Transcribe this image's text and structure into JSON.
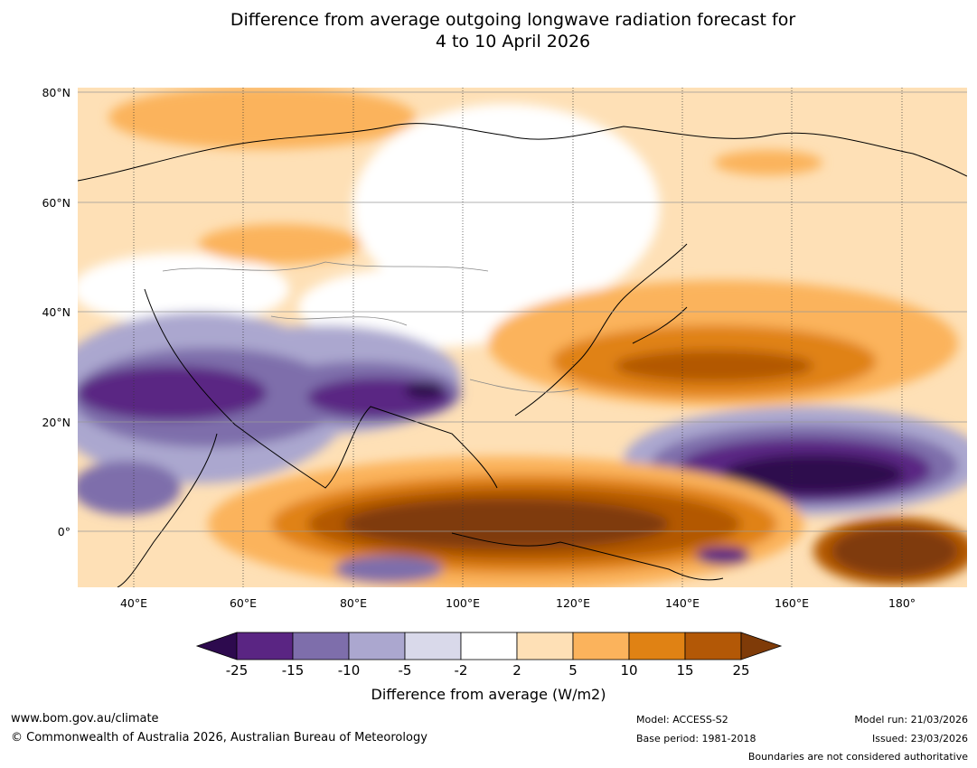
{
  "title_line1": "Difference from average outgoing longwave radiation forecast for",
  "title_line2": "4 to 10 April 2026",
  "map": {
    "lat_labels": [
      "80°N",
      "60°N",
      "40°N",
      "20°N",
      "0°"
    ],
    "lon_labels": [
      "40°E",
      "60°E",
      "80°E",
      "100°E",
      "120°E",
      "140°E",
      "160°E",
      "180°"
    ],
    "extent": {
      "lon_min": 30,
      "lon_max": 192,
      "lat_min": -10,
      "lat_max": 80
    }
  },
  "colorbar": {
    "ticks": [
      "-25",
      "-15",
      "-10",
      "-5",
      "-2",
      "2",
      "5",
      "10",
      "15",
      "25"
    ],
    "colors": [
      "#2d0a4e",
      "#5a2583",
      "#7e6eab",
      "#aba7cf",
      "#d9d9ea",
      "#ffffff",
      "#fee0b6",
      "#fbb35c",
      "#e08214",
      "#b35806",
      "#7f3b08"
    ],
    "title": "Difference from average (W/m2)"
  },
  "footer": {
    "url": "www.bom.gov.au/climate",
    "copyright": "© Commonwealth of Australia 2026, Australian Bureau of Meteorology",
    "model": "Model: ACCESS-S2",
    "base_period": "Base period: 1981-2018",
    "model_run": "Model run: 21/03/2026",
    "issued": "Issued: 23/03/2026",
    "disclaimer": "Boundaries are not considered authoritative"
  }
}
